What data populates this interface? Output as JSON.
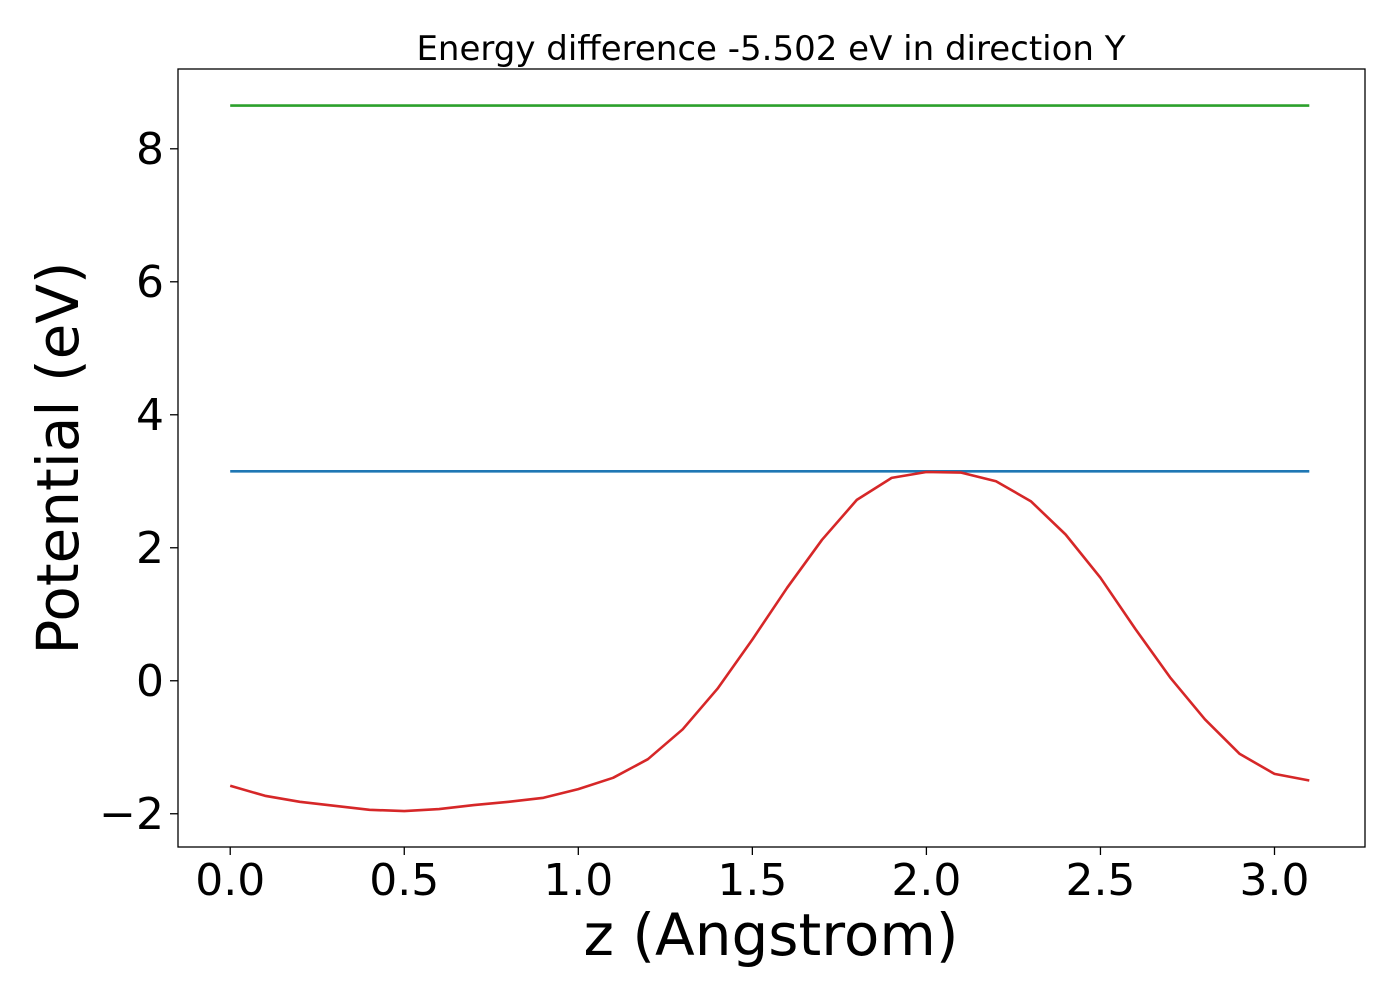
{
  "chart_data": {
    "type": "line",
    "title": "Energy difference -5.502 eV in direction Y",
    "xlabel": "z (Angstrom)",
    "ylabel": "Potential (eV)",
    "xlim": [
      -0.15,
      3.26
    ],
    "ylim": [
      -2.5,
      9.2
    ],
    "xticks": [
      {
        "value": 0.0,
        "label": "0.0"
      },
      {
        "value": 0.5,
        "label": "0.5"
      },
      {
        "value": 1.0,
        "label": "1.0"
      },
      {
        "value": 1.5,
        "label": "1.5"
      },
      {
        "value": 2.0,
        "label": "2.0"
      },
      {
        "value": 2.5,
        "label": "2.5"
      },
      {
        "value": 3.0,
        "label": "3.0"
      }
    ],
    "yticks": [
      {
        "value": -2,
        "label": "−2"
      },
      {
        "value": 0,
        "label": "0"
      },
      {
        "value": 2,
        "label": "2"
      },
      {
        "value": 4,
        "label": "4"
      },
      {
        "value": 6,
        "label": "6"
      },
      {
        "value": 8,
        "label": "8"
      }
    ],
    "grid": false,
    "series": [
      {
        "color": "#2ca02c",
        "x": [
          0.0,
          3.1
        ],
        "y": [
          8.65,
          8.65
        ]
      },
      {
        "color": "#1f77b4",
        "x": [
          0.0,
          3.1
        ],
        "y": [
          3.15,
          3.15
        ]
      },
      {
        "color": "#d62728",
        "x": [
          0.0,
          0.1,
          0.2,
          0.3,
          0.4,
          0.5,
          0.6,
          0.7,
          0.8,
          0.9,
          1.0,
          1.1,
          1.2,
          1.3,
          1.4,
          1.5,
          1.6,
          1.7,
          1.8,
          1.9,
          2.0,
          2.1,
          2.2,
          2.3,
          2.4,
          2.5,
          2.6,
          2.7,
          2.8,
          2.9,
          3.0,
          3.1
        ],
        "y": [
          -1.58,
          -1.73,
          -1.82,
          -1.88,
          -1.94,
          -1.96,
          -1.93,
          -1.87,
          -1.82,
          -1.76,
          -1.63,
          -1.46,
          -1.18,
          -0.73,
          -0.12,
          0.62,
          1.4,
          2.12,
          2.72,
          3.05,
          3.14,
          3.13,
          3.0,
          2.7,
          2.2,
          1.55,
          0.78,
          0.05,
          -0.58,
          -1.1,
          -1.4,
          -1.5
        ]
      }
    ]
  }
}
